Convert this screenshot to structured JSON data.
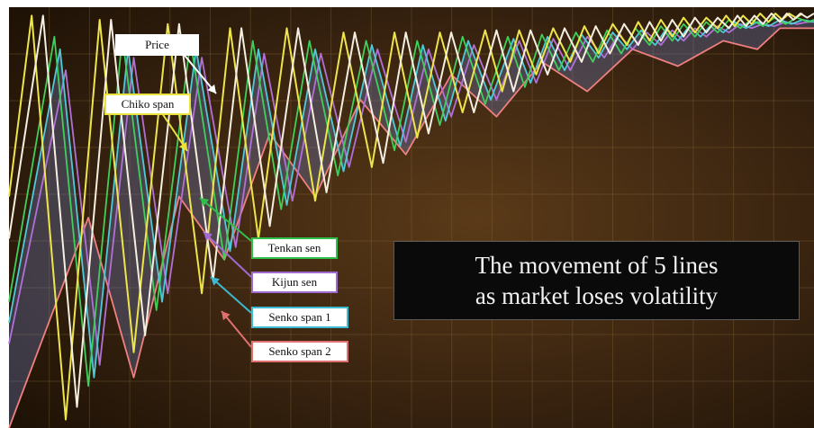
{
  "chart_data": {
    "type": "line",
    "description_free": true,
    "caption_lines": [
      "The movement of 5 lines",
      "as market loses volatility"
    ],
    "annotations": [
      {
        "id": "price",
        "text": "Price",
        "color": "#f2eee0",
        "border": "#ffffff"
      },
      {
        "id": "chiko",
        "text": "Chiko span",
        "color": "#f2ea4c",
        "border": "#e8e23a"
      },
      {
        "id": "tenkan",
        "text": "Tenkan sen",
        "color": "#3fcf5a",
        "border": "#2fbf4a"
      },
      {
        "id": "kijun",
        "text": "Kijun sen",
        "color": "#b57ad8",
        "border": "#a06ad0"
      },
      {
        "id": "senko1",
        "text": "Senko span 1",
        "color": "#4ec9d8",
        "border": "#3dbad0"
      },
      {
        "id": "senko2",
        "text": "Senko span 2",
        "color": "#f08a8a",
        "border": "#e07070"
      }
    ],
    "series": [
      {
        "name": "Price",
        "color": "#f4efe0",
        "x": [
          0,
          6,
          12,
          18,
          24,
          30,
          36,
          41,
          46,
          51,
          56,
          61,
          66,
          70,
          74,
          78,
          82,
          86,
          89,
          92,
          95,
          98,
          101,
          103.5,
          106,
          108.5,
          111,
          113,
          115,
          117,
          119,
          121,
          123,
          125,
          127,
          128.5,
          130,
          131.5,
          133,
          134.5,
          136,
          137.2,
          138.4,
          139.6,
          140.8,
          142
        ],
        "y": [
          0.45,
          0.98,
          0.05,
          0.97,
          0.22,
          0.96,
          0.35,
          0.95,
          0.48,
          0.95,
          0.56,
          0.94,
          0.63,
          0.94,
          0.7,
          0.94,
          0.75,
          0.945,
          0.8,
          0.945,
          0.84,
          0.95,
          0.87,
          0.955,
          0.89,
          0.96,
          0.91,
          0.965,
          0.92,
          0.97,
          0.93,
          0.975,
          0.94,
          0.975,
          0.95,
          0.98,
          0.955,
          0.98,
          0.96,
          0.985,
          0.965,
          0.985,
          0.97,
          0.985,
          0.975,
          0.985
        ]
      },
      {
        "name": "Chiko span",
        "color": "#ede54a",
        "x": [
          0,
          4,
          10,
          16,
          22,
          28,
          34,
          39,
          44,
          49,
          54,
          59,
          64,
          68,
          72,
          76,
          80,
          84,
          87,
          90,
          93,
          96,
          99,
          101.5,
          104,
          106.5,
          109,
          111,
          113,
          115,
          117,
          119,
          121,
          123,
          125,
          126.5,
          128,
          129.5,
          131,
          132.5,
          134,
          135.2,
          136.4,
          137.6,
          138.8,
          140
        ],
        "y": [
          0.55,
          0.98,
          0.02,
          0.97,
          0.18,
          0.96,
          0.32,
          0.95,
          0.45,
          0.95,
          0.54,
          0.94,
          0.62,
          0.94,
          0.69,
          0.94,
          0.75,
          0.945,
          0.8,
          0.945,
          0.84,
          0.95,
          0.87,
          0.955,
          0.89,
          0.96,
          0.91,
          0.965,
          0.92,
          0.97,
          0.93,
          0.975,
          0.94,
          0.975,
          0.95,
          0.98,
          0.955,
          0.98,
          0.96,
          0.985,
          0.965,
          0.985,
          0.97,
          0.985,
          0.975,
          0.985
        ]
      },
      {
        "name": "Tenkan sen",
        "color": "#3fcf5a",
        "x": [
          0,
          8,
          14,
          20,
          26,
          32,
          38,
          43,
          48,
          53,
          58,
          63,
          68,
          72,
          76,
          80,
          84,
          88,
          91,
          94,
          97,
          100,
          103,
          105.5,
          108,
          110.5,
          113,
          115,
          117,
          119,
          121,
          123,
          125,
          127,
          129,
          131,
          133,
          135,
          137,
          139,
          141,
          142
        ],
        "y": [
          0.3,
          0.93,
          0.1,
          0.93,
          0.28,
          0.92,
          0.4,
          0.92,
          0.52,
          0.92,
          0.6,
          0.92,
          0.66,
          0.92,
          0.72,
          0.93,
          0.77,
          0.93,
          0.81,
          0.935,
          0.85,
          0.94,
          0.87,
          0.945,
          0.89,
          0.95,
          0.91,
          0.955,
          0.92,
          0.96,
          0.93,
          0.965,
          0.94,
          0.97,
          0.95,
          0.97,
          0.955,
          0.975,
          0.96,
          0.975,
          0.965,
          0.97
        ]
      },
      {
        "name": "Kijun sen",
        "color": "#b070d8",
        "x": [
          0,
          10,
          16,
          22,
          28,
          34,
          40,
          45,
          50,
          55,
          60,
          65,
          70,
          74,
          78,
          82,
          86,
          90,
          93,
          96,
          99,
          102,
          105,
          107.5,
          110,
          112.5,
          115,
          117,
          119,
          121,
          123,
          125,
          127,
          129,
          131,
          133,
          135,
          137,
          139,
          141,
          142
        ],
        "y": [
          0.2,
          0.85,
          0.15,
          0.88,
          0.32,
          0.88,
          0.43,
          0.89,
          0.54,
          0.89,
          0.62,
          0.9,
          0.68,
          0.9,
          0.74,
          0.91,
          0.78,
          0.92,
          0.82,
          0.925,
          0.85,
          0.93,
          0.88,
          0.935,
          0.9,
          0.94,
          0.91,
          0.945,
          0.92,
          0.95,
          0.93,
          0.955,
          0.94,
          0.96,
          0.95,
          0.96,
          0.955,
          0.965,
          0.96,
          0.965,
          0.965
        ]
      },
      {
        "name": "Senko span 1",
        "color": "#4ec9d8",
        "x": [
          0,
          9,
          15,
          21,
          27,
          33,
          39,
          44,
          49,
          54,
          59,
          64,
          69,
          73,
          77,
          81,
          85,
          89,
          92,
          95,
          98,
          101,
          104,
          106.5,
          109,
          111.5,
          114,
          116,
          118,
          120,
          122,
          124,
          126,
          128,
          130,
          132,
          134,
          136,
          138,
          140,
          142
        ],
        "y": [
          0.25,
          0.9,
          0.12,
          0.9,
          0.3,
          0.9,
          0.42,
          0.9,
          0.53,
          0.9,
          0.61,
          0.91,
          0.67,
          0.91,
          0.73,
          0.92,
          0.78,
          0.925,
          0.82,
          0.93,
          0.85,
          0.935,
          0.88,
          0.94,
          0.9,
          0.945,
          0.91,
          0.95,
          0.92,
          0.955,
          0.93,
          0.96,
          0.94,
          0.965,
          0.95,
          0.965,
          0.955,
          0.97,
          0.96,
          0.97,
          0.965
        ]
      },
      {
        "name": "Senko span 2",
        "color": "#f08080",
        "x": [
          0,
          14,
          22,
          30,
          38,
          46,
          54,
          62,
          70,
          78,
          86,
          94,
          102,
          110,
          118,
          126,
          132,
          136,
          142
        ],
        "y": [
          0.0,
          0.5,
          0.12,
          0.55,
          0.4,
          0.7,
          0.55,
          0.78,
          0.65,
          0.84,
          0.74,
          0.87,
          0.8,
          0.9,
          0.86,
          0.92,
          0.9,
          0.95,
          0.95
        ]
      }
    ],
    "band": {
      "between": [
        "Senko span 1",
        "Senko span 2"
      ],
      "color": "#6a7ab8"
    },
    "grid": true,
    "background": "#3a2410",
    "xlim": [
      0,
      142
    ],
    "ylim": [
      0,
      1
    ]
  }
}
